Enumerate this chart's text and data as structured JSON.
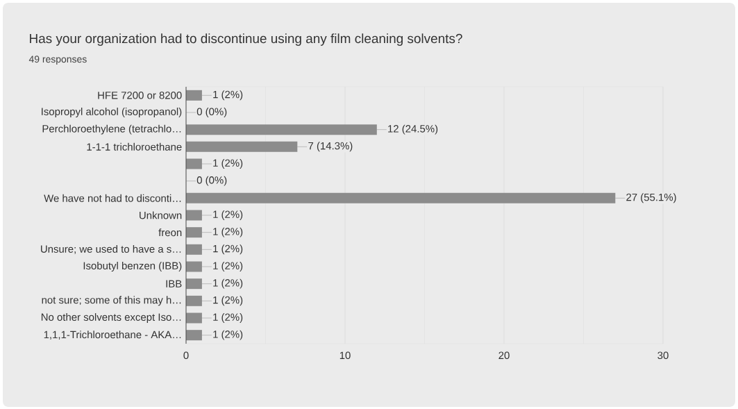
{
  "chart_data": {
    "type": "bar",
    "orientation": "horizontal",
    "title": "Has your organization had to discontinue using any film cleaning solvents?",
    "subtitle": "49 responses",
    "categories": [
      "HFE 7200 or 8200",
      "Isopropyl alcohol (isopropanol)",
      "Perchloroethylene (tetrachlo…",
      "1-1-1 trichloroethane",
      null,
      null,
      "We have not had to disconti…",
      "Unknown",
      "freon",
      "Unsure; we used to have a s…",
      "Isobutyl benzen (IBB)",
      "IBB",
      "not sure; some of this may h…",
      "No other solvents except Iso…",
      "1,1,1-Trichloroethane - AKA…"
    ],
    "values": [
      1,
      0,
      12,
      7,
      1,
      0,
      27,
      1,
      1,
      1,
      1,
      1,
      1,
      1,
      1
    ],
    "value_labels": [
      "1 (2%)",
      "0 (0%)",
      "12 (24.5%)",
      "7 (14.3%)",
      "1 (2%)",
      "0 (0%)",
      "27 (55.1%)",
      "1 (2%)",
      "1 (2%)",
      "1 (2%)",
      "1 (2%)",
      "1 (2%)",
      "1 (2%)",
      "1 (2%)",
      "1 (2%)"
    ],
    "color": "#8c8c8c",
    "xlim": [
      0,
      30
    ],
    "xticks": [
      0,
      10,
      20,
      30
    ],
    "grid": "x"
  }
}
